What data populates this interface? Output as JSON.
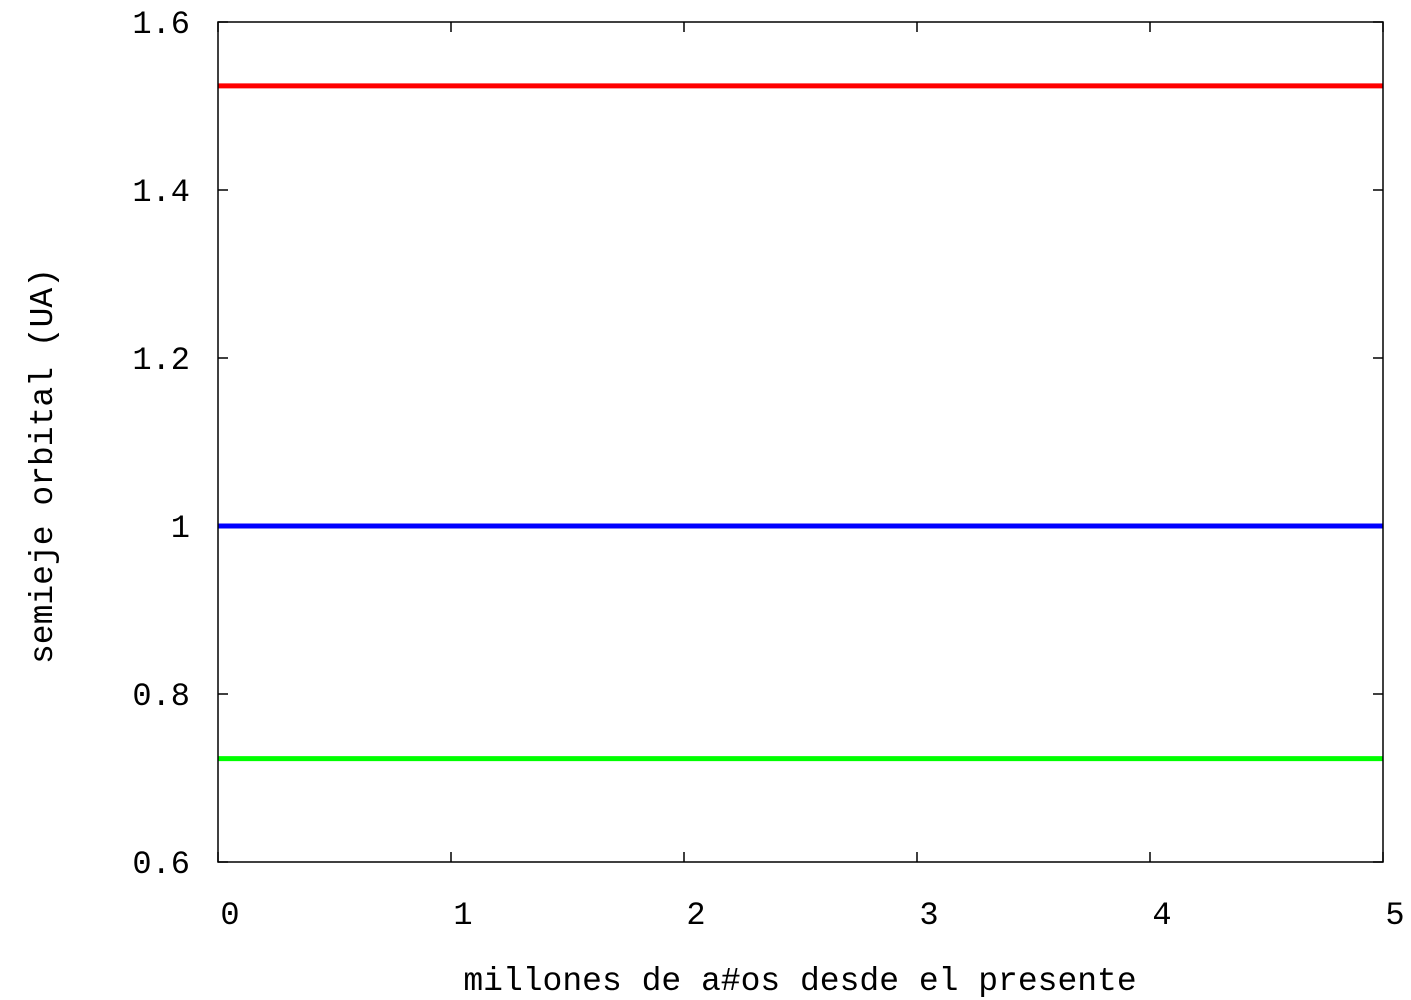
{
  "chart_data": {
    "type": "line",
    "title": "",
    "xlabel": "millones de a#os desde el presente",
    "ylabel": "semieje orbital (UA)",
    "xlim": [
      0,
      5
    ],
    "ylim": [
      0.6,
      1.6
    ],
    "x_ticks": [
      "0",
      "1",
      "2",
      "3",
      "4",
      "5"
    ],
    "y_ticks": [
      "0.6",
      "0.8",
      "1",
      "1.2",
      "1.4",
      "1.6"
    ],
    "grid": false,
    "legend": "none",
    "series": [
      {
        "color": "#ff0000",
        "x": [
          0,
          5
        ],
        "y": [
          1.524,
          1.524
        ]
      },
      {
        "color": "#0000ff",
        "x": [
          0,
          5
        ],
        "y": [
          1.0,
          1.0
        ]
      },
      {
        "color": "#00ff00",
        "x": [
          0,
          5
        ],
        "y": [
          0.723,
          0.723
        ]
      }
    ]
  }
}
